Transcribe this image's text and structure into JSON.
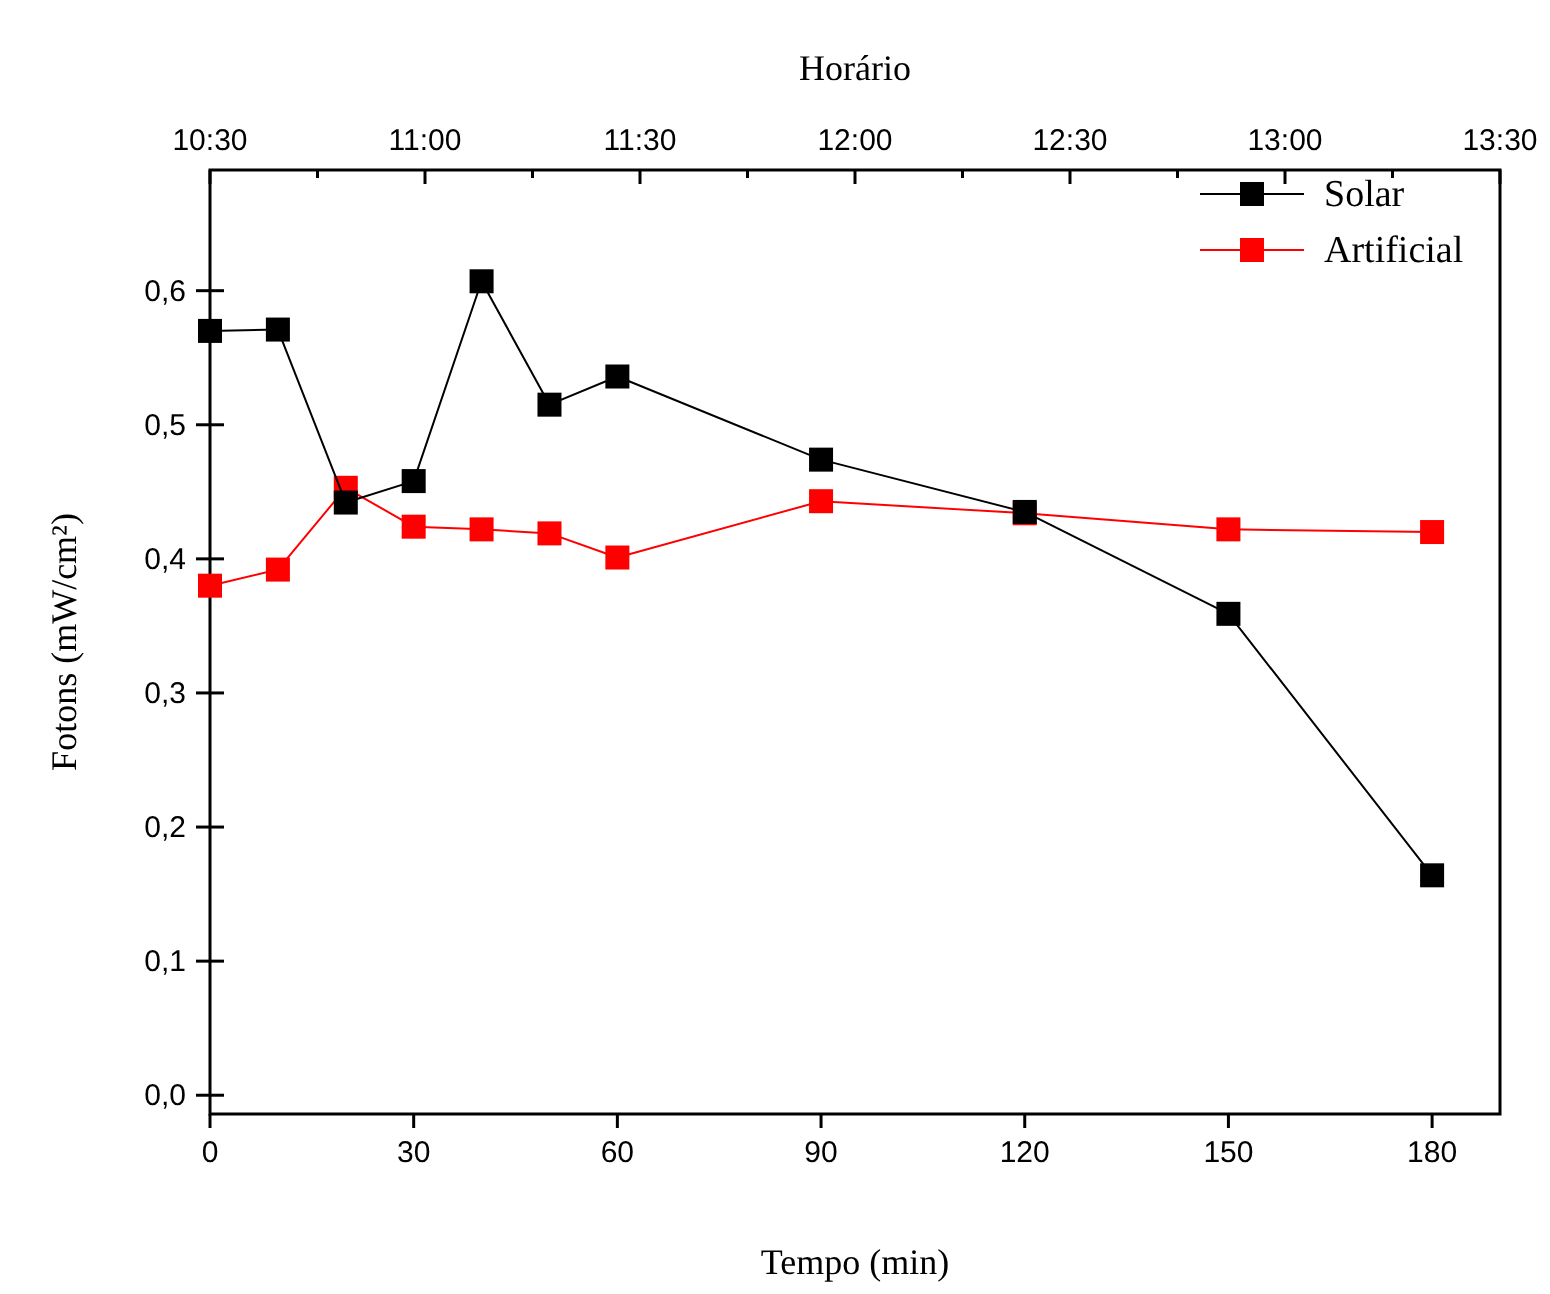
{
  "chart_data": {
    "type": "line",
    "xlabel": "Tempo (min)",
    "ylabel": "Fotons (mW/cm²)",
    "x2label": "Horário",
    "x": [
      0,
      10,
      20,
      30,
      40,
      50,
      60,
      90,
      120,
      150,
      180
    ],
    "series": [
      {
        "name": "Solar",
        "color": "#000000",
        "values": [
          0.57,
          0.571,
          0.442,
          0.458,
          0.607,
          0.515,
          0.536,
          0.474,
          0.435,
          0.359,
          0.164
        ]
      },
      {
        "name": "Artificial",
        "color": "#ff0000",
        "values": [
          0.38,
          0.392,
          0.453,
          0.424,
          0.422,
          0.419,
          0.401,
          0.443,
          0.434,
          0.422,
          0.42
        ]
      }
    ],
    "xlim": [
      0,
      190
    ],
    "xticks": [
      0,
      30,
      60,
      90,
      120,
      150,
      180
    ],
    "ylim": [
      -0.014,
      0.69
    ],
    "yticks": [
      {
        "value": 0,
        "label": "0,0"
      },
      {
        "value": 0.1,
        "label": "0,1"
      },
      {
        "value": 0.2,
        "label": "0,2"
      },
      {
        "value": 0.3,
        "label": "0,3"
      },
      {
        "value": 0.4,
        "label": "0,4"
      },
      {
        "value": 0.5,
        "label": "0,5"
      },
      {
        "value": 0.6,
        "label": "0,6"
      }
    ],
    "x2lim": [
      10.5,
      13.5
    ],
    "x2ticks": [
      {
        "value": 10.5,
        "label": "10:30"
      },
      {
        "value": 10.75,
        "label": null
      },
      {
        "value": 11,
        "label": "11:00"
      },
      {
        "value": 11.25,
        "label": null
      },
      {
        "value": 11.5,
        "label": "11:30"
      },
      {
        "value": 11.75,
        "label": null
      },
      {
        "value": 12,
        "label": "12:00"
      },
      {
        "value": 12.25,
        "label": null
      },
      {
        "value": 12.5,
        "label": "12:30"
      },
      {
        "value": 12.75,
        "label": null
      },
      {
        "value": 13,
        "label": "13:00"
      },
      {
        "value": 13.25,
        "label": null
      },
      {
        "value": 13.5,
        "label": "13:30"
      }
    ],
    "legend": "top right",
    "marker": "square",
    "line_style": "solid",
    "grid": false
  }
}
